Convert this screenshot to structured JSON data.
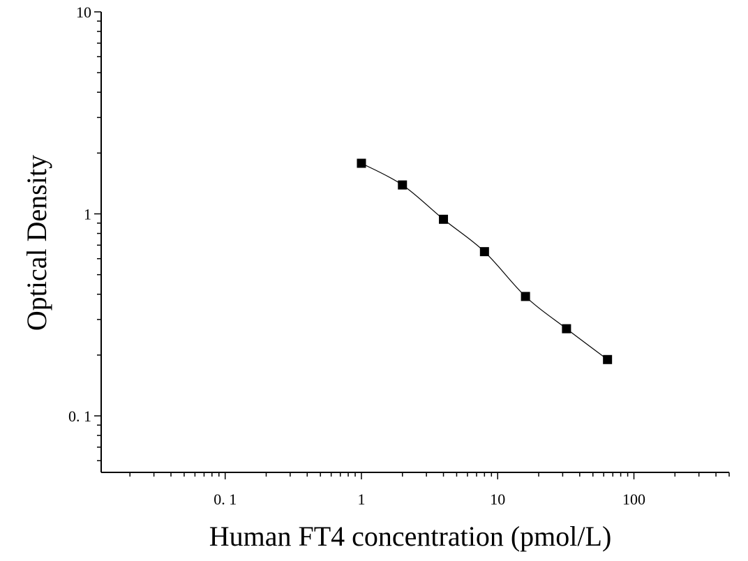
{
  "chart_data": {
    "type": "scatter",
    "title": "",
    "xlabel": "Human FT4 concentration (pmol/L)",
    "ylabel": "Optical Density",
    "xscale": "log",
    "yscale": "log",
    "xlim": [
      0.0123,
      500
    ],
    "ylim": [
      0.0525,
      10
    ],
    "x_major_ticks": [
      0.1,
      1,
      10,
      100
    ],
    "x_tick_labels": [
      "0. 1",
      "1",
      "10",
      "100"
    ],
    "y_major_ticks": [
      0.1,
      1,
      10
    ],
    "y_tick_labels": [
      "0. 1",
      "1",
      "10"
    ],
    "grid": false,
    "legend": "none",
    "marker": "square",
    "marker_color": "#000000",
    "fit_line": "smooth curve through points",
    "series": [
      {
        "x": [
          1,
          2,
          4,
          8,
          16,
          32,
          64
        ],
        "y": [
          1.78,
          1.39,
          0.94,
          0.65,
          0.39,
          0.27,
          0.19
        ]
      }
    ]
  }
}
